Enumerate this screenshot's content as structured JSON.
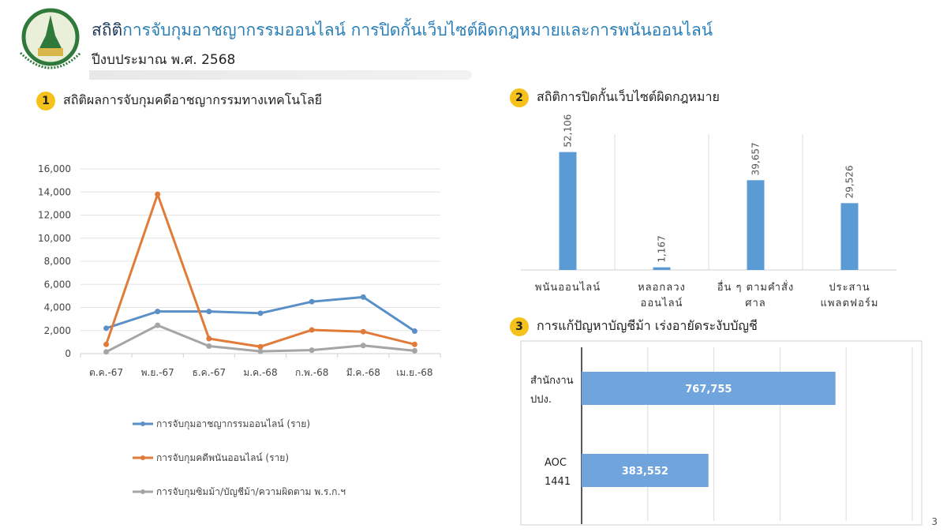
{
  "header": {
    "title_prefix": "สถิติ",
    "title_main": "การจับกุมอาชญากรรมออนไลน์ การปิดกั้นเว็บไซต์ผิดกฎหมายและการพนันออนไลน์",
    "subtitle": "ปีงบประมาณ พ.ศ. 2568",
    "logo_text": "Ministry of Digital Economy and Society"
  },
  "sections": [
    {
      "num": "1",
      "title": "สถิติผลการจับกุมคดีอาชญากรรมทางเทคโนโลยี"
    },
    {
      "num": "2",
      "title": "สถิติการปิดกั้นเว็บไซต์ผิดกฎหมาย"
    },
    {
      "num": "3",
      "title": "การแก้ปัญหาบัญชีม้า เร่งอายัดระงับบัญชี"
    }
  ],
  "page_number": "3",
  "colors": {
    "blue": "#5b8fc7",
    "orange": "#e07b39",
    "gray": "#a5a5a5",
    "bar": "#5b9bd5",
    "badge": "#f5c21b"
  },
  "chart_data": [
    {
      "type": "line",
      "categories": [
        "ต.ค.-67",
        "พ.ย.-67",
        "ธ.ค.-67",
        "ม.ค.-68",
        "ก.พ.-68",
        "มี.ค.-68",
        "เม.ย.-68"
      ],
      "ylim": [
        0,
        16000
      ],
      "yticks": [
        "0",
        "2,000",
        "4,000",
        "6,000",
        "8,000",
        "10,000",
        "12,000",
        "14,000",
        "16,000"
      ],
      "grid": true,
      "legend": "bottom",
      "series": [
        {
          "name": "การจับกุมอาชญากรรมออนไลน์ (ราย)",
          "color": "#5b8fc7",
          "values": [
            2200,
            3650,
            3650,
            3500,
            4500,
            4900,
            1950
          ]
        },
        {
          "name": "การจับกุมคดีพนันออนไลน์ (ราย)",
          "color": "#e07b39",
          "values": [
            800,
            13800,
            1300,
            600,
            2050,
            1900,
            800
          ]
        },
        {
          "name": "การจับกุมซิมม้า/บัญชีม้า/ความผิดตาม พ.ร.ก.ฯ",
          "color": "#a5a5a5",
          "values": [
            150,
            2450,
            650,
            200,
            300,
            700,
            250
          ]
        }
      ]
    },
    {
      "type": "bar",
      "categories": [
        [
          "พนันออนไลน์"
        ],
        [
          "หลอกลวง",
          "ออนไลน์"
        ],
        [
          "อื่น ๆ ตามคำสั่ง",
          "ศาล"
        ],
        [
          "ประสาน",
          "แพลตฟอร์ม"
        ]
      ],
      "values": [
        52106,
        1167,
        39657,
        29526
      ],
      "labels": [
        "52,106",
        "1,167",
        "39,657",
        "29,526"
      ],
      "ylim": [
        0,
        60000
      ]
    },
    {
      "type": "bar",
      "orientation": "horizontal",
      "categories": [
        [
          "สำนักงาน",
          "ปปง."
        ],
        [
          "AOC",
          "1441"
        ]
      ],
      "values": [
        767755,
        383552
      ],
      "labels": [
        "767,755",
        "383,552"
      ],
      "xlim": [
        0,
        1000000
      ]
    }
  ]
}
